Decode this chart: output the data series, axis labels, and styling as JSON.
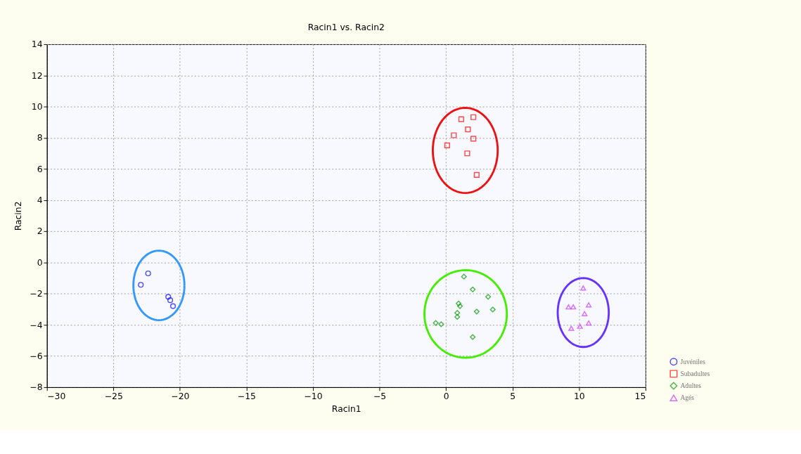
{
  "chart_data": {
    "type": "scatter",
    "title": "Racin1 vs. Racin2",
    "xlabel": "Racin1",
    "ylabel": "Racin2",
    "xlim": [
      -30,
      15
    ],
    "xticks": [
      -30,
      -25,
      -20,
      -15,
      -10,
      -5,
      0,
      5,
      10,
      15
    ],
    "ylim": [
      -8,
      14
    ],
    "yticks": [
      -8,
      -6,
      -4,
      -2,
      0,
      2,
      4,
      6,
      8,
      10,
      12,
      14
    ],
    "grid": true,
    "legend": "bottom right",
    "series": [
      {
        "name": "Juvéniles",
        "color": "#0000ff",
        "marker": "circle",
        "x": [
          -22.39,
          -22.94,
          -20.88,
          -20.73,
          -20.52
        ],
        "values": [
          -0.7,
          -1.43,
          -2.2,
          -2.42,
          -2.8
        ]
      },
      {
        "name": "Subadultes",
        "color": "#ff0000",
        "marker": "square",
        "x": [
          1.15,
          2.06,
          1.65,
          0.59,
          2.06,
          0.09,
          1.6,
          2.31
        ],
        "values": [
          9.19,
          9.32,
          8.54,
          8.16,
          7.94,
          7.51,
          7.0,
          5.62
        ]
      },
      {
        "name": "Adultes",
        "color": "#009900",
        "marker": "diamond",
        "x": [
          1.35,
          2.01,
          3.17,
          0.95,
          1.05,
          3.52,
          2.31,
          0.85,
          0.85,
          -0.77,
          -0.36,
          2.01
        ],
        "values": [
          -0.91,
          -1.73,
          -2.2,
          -2.63,
          -2.8,
          -3.02,
          -3.15,
          -3.23,
          -3.49,
          -3.88,
          -3.96,
          -4.78
        ]
      },
      {
        "name": "Agés",
        "color": "#cc33ff",
        "marker": "triangle",
        "x": [
          10.32,
          9.21,
          9.57,
          10.73,
          10.42,
          10.73,
          9.42,
          10.07
        ],
        "values": [
          -1.64,
          -2.85,
          -2.85,
          -2.72,
          -3.28,
          -3.88,
          -4.22,
          -4.09
        ]
      }
    ]
  }
}
